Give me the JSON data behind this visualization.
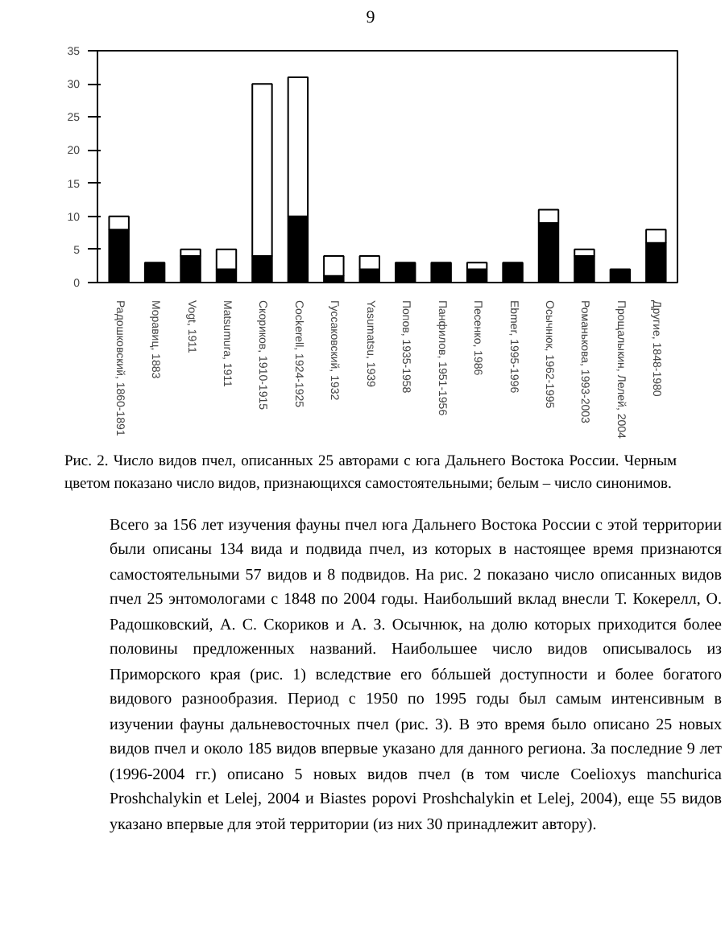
{
  "chart_data": {
    "type": "bar",
    "stacked": true,
    "categories": [
      "Радошковский, 1860-1891",
      "Моравиц, 1883",
      "Vogt, 1911",
      "Matsumura, 1911",
      "Скориков, 1910-1915",
      "Cockerell, 1924-1925",
      "Гуссаковский, 1932",
      "Yasumatsu, 1939",
      "Попов, 1935-1958",
      "Панфилов, 1951-1956",
      "Песенко, 1986",
      "Ebmer, 1995-1996",
      "Осычнюк, 1962-1995",
      "Романькова, 1993-2003",
      "Прощалыкин, Лелей, 2004",
      "Другие, 1848-1980"
    ],
    "series": [
      {
        "color": "#000000",
        "values": [
          8,
          3,
          4,
          2,
          4,
          10,
          1,
          2,
          3,
          3,
          2,
          3,
          9,
          4,
          2,
          6
        ]
      },
      {
        "color": "#ffffff",
        "values": [
          2,
          null,
          1,
          3,
          26,
          21,
          3,
          2,
          null,
          null,
          1,
          null,
          2,
          1,
          null,
          2
        ]
      }
    ],
    "ylim": [
      0,
      35
    ],
    "yticks": [
      0,
      5,
      10,
      15,
      20,
      25,
      30,
      35
    ],
    "grid": false,
    "annotations": [
      "9",
      "Рис. 2. Число видов пчел, описанных 25 авторами с юга Дальнего Востока России. Черным цветом показано число видов, признающихся самостоятельными; белым – число синонимов.",
      "Всего за 156 лет изучения фауны пчел юга Дальнего Востока России с этой территории были описаны 134 вида и подвида пчел, из которых в настоящее время признаются самостоятельными 57 видов и 8 подвидов. На рис. 2 показано число описанных видов пчел 25 энтомологами с 1848 по 2004 годы. Наибольший вклад внесли Т. Кокерелл, О. Радошковский, А. С. Скориков и А. З. Осычнюк, на долю которых приходится более половины предложенных названий. Наибольшее число видов описывалось из Приморского края (рис. 1) вследствие его бóльшей доступности и более богатого видового разнообразия. Период с 1950 по 1995 годы был самым интенсивным в изучении фауны дальневосточных пчел (рис. 3). В это время было описано 25 новых видов пчел и около 185 видов впервые указано для данного региона. За последние 9 лет (1996-2004 гг.) описано 5 новых видов пчел (в том числе Coelioxys manchurica Proshchalykin et Lelej, 2004 и Biastes popovi Proshchalykin et Lelej, 2004), еще 55 видов указано впервые для этой территории (из них 30 принадлежит автору)."
    ]
  }
}
